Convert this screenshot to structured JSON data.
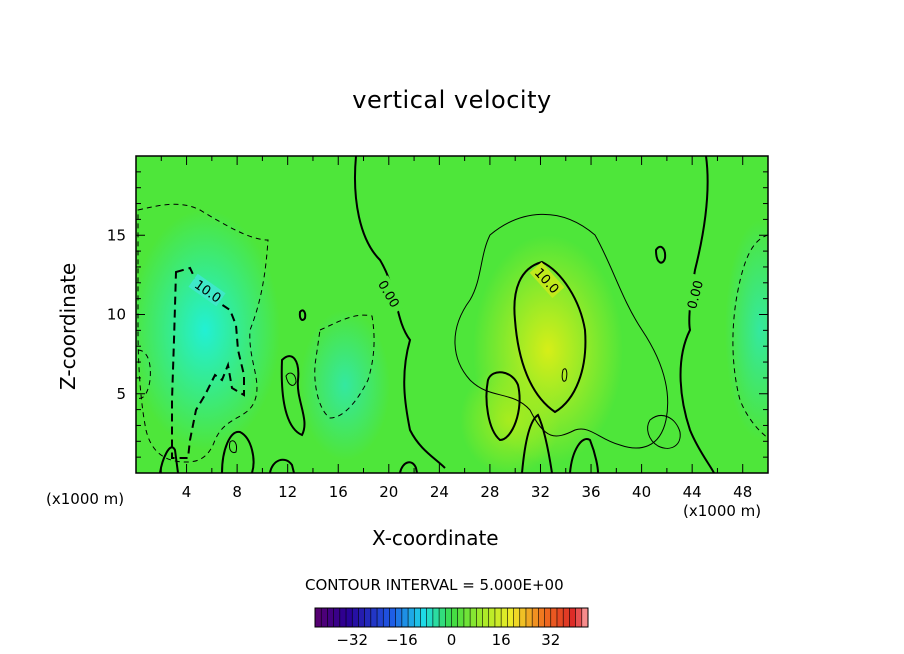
{
  "chart_data": {
    "type": "heatmap",
    "title": "vertical velocity",
    "xlabel": "X-coordinate",
    "ylabel": "Z-coordinate",
    "x_unit": "(x1000 m)",
    "x_ticks": [
      4,
      8,
      12,
      16,
      20,
      24,
      28,
      32,
      36,
      40,
      44,
      48
    ],
    "y_ticks": [
      5,
      10,
      15
    ],
    "xlim": [
      0,
      50
    ],
    "ylim": [
      0,
      20
    ],
    "contour_interval_text": "CONTOUR INTERVAL = 5.000E+00",
    "contour_labels": [
      "10.0",
      "0.00",
      "10.0",
      "0.00"
    ],
    "colorbar": {
      "range": [
        -44,
        44
      ],
      "tick_labels": [
        "-32",
        "-16",
        "0",
        "16",
        "32"
      ],
      "tick_values": [
        -32,
        -16,
        0,
        16,
        32
      ]
    }
  }
}
